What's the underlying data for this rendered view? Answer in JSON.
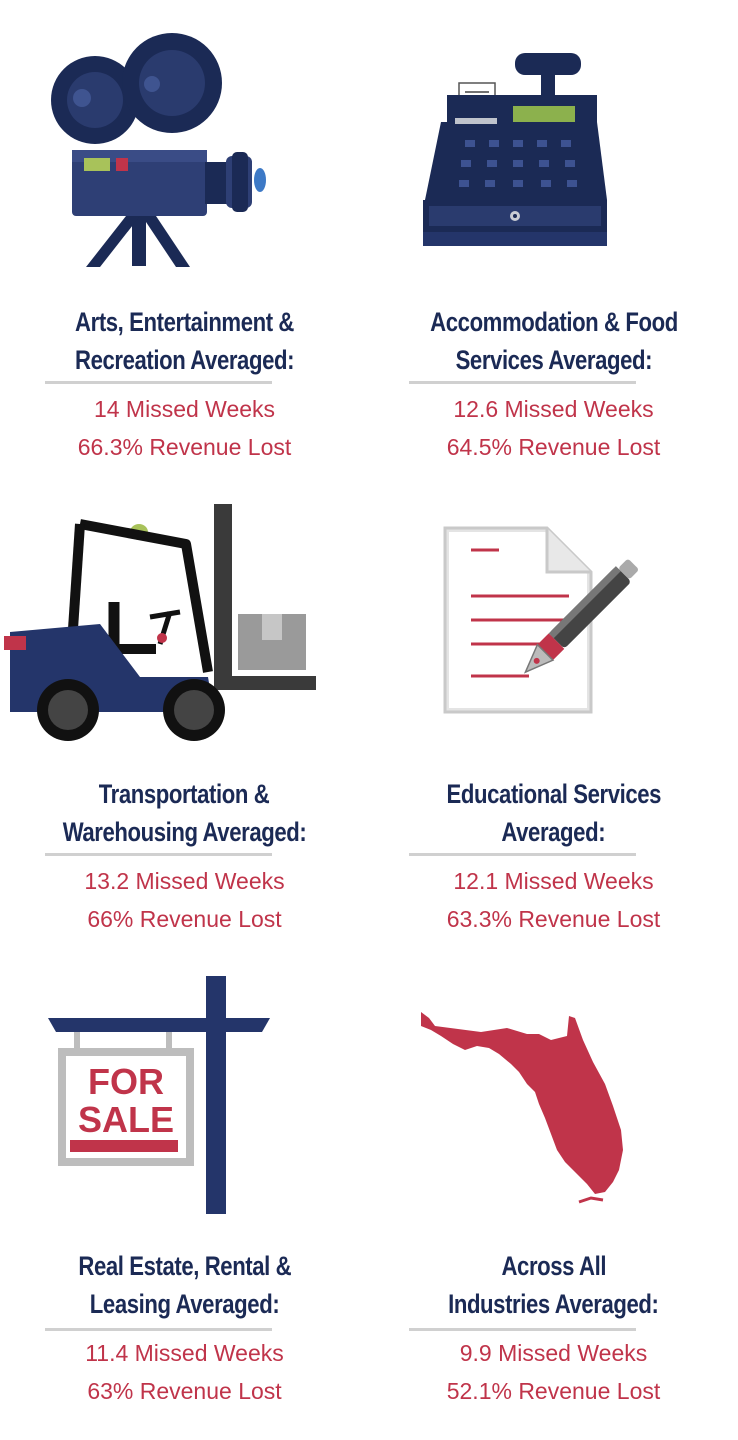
{
  "colors": {
    "navy": "#1b2a55",
    "red": "#c0344a",
    "divider": "#d0d0d0",
    "green": "#8cb14d"
  },
  "sections": [
    {
      "icon": "film-camera-icon",
      "title_line1": "Arts, Entertainment &",
      "title_line2": "Recreation Averaged:",
      "missed_weeks": "14 Missed Weeks",
      "revenue_lost": "66.3% Revenue Lost"
    },
    {
      "icon": "cash-register-icon",
      "title_line1": "Accommodation & Food",
      "title_line2": "Services Averaged:",
      "missed_weeks": "12.6 Missed Weeks",
      "revenue_lost": "64.5% Revenue Lost"
    },
    {
      "icon": "forklift-icon",
      "title_line1": "Transportation &",
      "title_line2": "Warehousing Averaged:",
      "missed_weeks": "13.2 Missed Weeks",
      "revenue_lost": "66% Revenue Lost"
    },
    {
      "icon": "document-pen-icon",
      "title_line1": "Educational Services",
      "title_line2": "Averaged:",
      "missed_weeks": "12.1 Missed Weeks",
      "revenue_lost": "63.3% Revenue Lost"
    },
    {
      "icon": "for-sale-sign-icon",
      "title_line1": "Real Estate, Rental &",
      "title_line2": "Leasing Averaged:",
      "missed_weeks": "11.4 Missed Weeks",
      "revenue_lost": "63% Revenue Lost",
      "sign_text_line1": "FOR",
      "sign_text_line2": "SALE"
    },
    {
      "icon": "florida-map-icon",
      "title_line1": "Across All",
      "title_line2": "Industries  Averaged:",
      "missed_weeks": "9.9 Missed Weeks",
      "revenue_lost": "52.1% Revenue Lost"
    }
  ]
}
